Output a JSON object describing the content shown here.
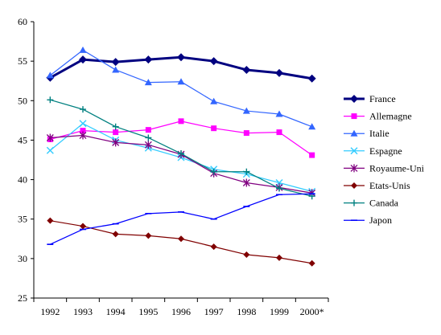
{
  "chart_data": {
    "type": "line",
    "title": "",
    "xlabel": "",
    "ylabel": "",
    "categories": [
      "1992",
      "1993",
      "1994",
      "1995",
      "1996",
      "1997",
      "1998",
      "1999",
      "2000*"
    ],
    "ylim": [
      25,
      60
    ],
    "yticks": [
      "25",
      "30",
      "35",
      "40",
      "45",
      "50",
      "55",
      "60"
    ],
    "grid": false,
    "legend_position": "right",
    "series": [
      {
        "name": "France",
        "color": "#000080",
        "marker": "diamond",
        "bold": true,
        "values": [
          52.9,
          55.2,
          54.9,
          55.2,
          55.5,
          55.0,
          53.9,
          53.5,
          52.8
        ]
      },
      {
        "name": "Allemagne",
        "color": "#FF00FF",
        "marker": "square",
        "values": [
          45.1,
          46.2,
          46.0,
          46.3,
          47.4,
          46.5,
          45.9,
          46.0,
          43.1
        ]
      },
      {
        "name": "Italie",
        "color": "#3366FF",
        "marker": "triangle",
        "values": [
          53.2,
          56.4,
          53.9,
          52.3,
          52.4,
          49.9,
          48.7,
          48.3,
          46.7
        ]
      },
      {
        "name": "Espagne",
        "color": "#33CCFF",
        "marker": "x",
        "values": [
          43.7,
          47.1,
          45.0,
          44.0,
          42.8,
          41.3,
          40.7,
          39.6,
          38.5
        ]
      },
      {
        "name": "Royaume-Uni",
        "color": "#800080",
        "marker": "star",
        "values": [
          45.3,
          45.6,
          44.7,
          44.4,
          43.2,
          40.8,
          39.6,
          39.0,
          38.3
        ]
      },
      {
        "name": "Etats-Unis",
        "color": "#800000",
        "marker": "diamond",
        "values": [
          34.8,
          34.1,
          33.1,
          32.9,
          32.5,
          31.5,
          30.5,
          30.1,
          29.4
        ]
      },
      {
        "name": "Canada",
        "color": "#008080",
        "marker": "plus",
        "values": [
          50.1,
          48.9,
          46.7,
          45.3,
          43.3,
          41.0,
          41.0,
          38.9,
          37.9
        ]
      },
      {
        "name": "Japon",
        "color": "#0000FF",
        "marker": "dash",
        "values": [
          31.8,
          33.7,
          34.4,
          35.7,
          35.9,
          35.0,
          36.6,
          38.1,
          38.2
        ]
      }
    ]
  }
}
